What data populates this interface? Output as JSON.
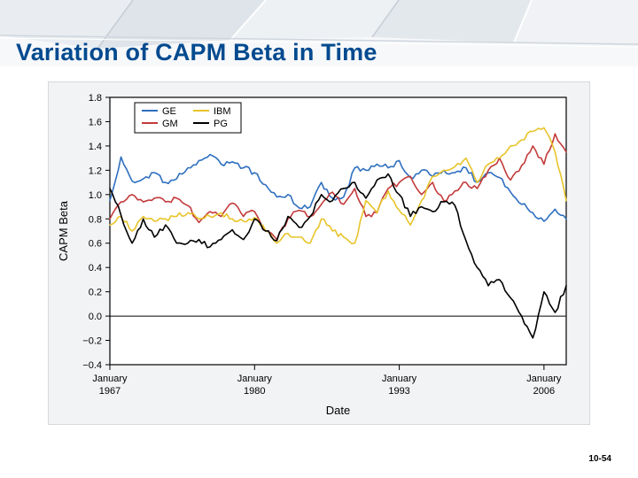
{
  "slide": {
    "title_text": "Variation of CAPM Beta in Time",
    "title_color": "#004a8f",
    "page_number": "10-54",
    "background": "#ffffff",
    "banner": {
      "base_fill": "#f3f5f7",
      "shadow": "#c3cad1",
      "highlight": "#ffffff",
      "mid": "#dbe1e7"
    }
  },
  "chart": {
    "type": "line",
    "frame_border": "#bfbfbf",
    "frame_bg": "#f2f3f5",
    "plot_bg": "#ffffff",
    "axis_color": "#000000",
    "grid_color": "#000000",
    "zero_line_color": "#000000",
    "line_width": 1.6,
    "tick_fontsize": 11,
    "label_fontsize": 13,
    "legend": {
      "border": "#000000",
      "bg": "#ffffff",
      "fontsize": 11,
      "items": [
        {
          "label": "GE",
          "color": "#2e6fbf"
        },
        {
          "label": "GM",
          "color": "#c33a3a"
        },
        {
          "label": "IBM",
          "color": "#e8c42a"
        },
        {
          "label": "PG",
          "color": "#000000"
        }
      ]
    },
    "y": {
      "label": "CAPM Beta",
      "min": -0.4,
      "max": 1.8,
      "ticks": [
        -0.4,
        -0.2,
        0.0,
        0.2,
        0.4,
        0.6,
        0.8,
        1.0,
        1.2,
        1.4,
        1.6,
        1.8
      ]
    },
    "x": {
      "label": "Date",
      "min": 1967,
      "max": 2008,
      "tick_years": [
        1967,
        1980,
        1993,
        2006
      ],
      "tick_label_top": "January"
    },
    "series": {
      "GE": {
        "color": "#2e6fbf",
        "points": [
          [
            1967,
            0.95
          ],
          [
            1968,
            1.31
          ],
          [
            1969,
            1.11
          ],
          [
            1970,
            1.13
          ],
          [
            1971,
            1.18
          ],
          [
            1972,
            1.1
          ],
          [
            1973,
            1.13
          ],
          [
            1974,
            1.22
          ],
          [
            1975,
            1.28
          ],
          [
            1976,
            1.33
          ],
          [
            1977,
            1.25
          ],
          [
            1978,
            1.27
          ],
          [
            1979,
            1.22
          ],
          [
            1980,
            1.18
          ],
          [
            1981,
            1.08
          ],
          [
            1982,
            0.98
          ],
          [
            1983,
            1.0
          ],
          [
            1984,
            0.89
          ],
          [
            1985,
            0.9
          ],
          [
            1986,
            1.1
          ],
          [
            1987,
            0.97
          ],
          [
            1988,
            0.98
          ],
          [
            1989,
            1.22
          ],
          [
            1990,
            1.2
          ],
          [
            1991,
            1.25
          ],
          [
            1992,
            1.22
          ],
          [
            1993,
            1.28
          ],
          [
            1994,
            1.14
          ],
          [
            1995,
            1.2
          ],
          [
            1996,
            1.15
          ],
          [
            1997,
            1.2
          ],
          [
            1998,
            1.18
          ],
          [
            1999,
            1.22
          ],
          [
            2000,
            1.1
          ],
          [
            2001,
            1.18
          ],
          [
            2002,
            1.14
          ],
          [
            2003,
            1.02
          ],
          [
            2004,
            0.92
          ],
          [
            2005,
            0.85
          ],
          [
            2006,
            0.78
          ],
          [
            2007,
            0.88
          ],
          [
            2008,
            0.8
          ]
        ]
      },
      "GM": {
        "color": "#c33a3a",
        "points": [
          [
            1967,
            0.8
          ],
          [
            1968,
            0.94
          ],
          [
            1969,
            1.0
          ],
          [
            1970,
            0.94
          ],
          [
            1971,
            0.97
          ],
          [
            1972,
            0.94
          ],
          [
            1973,
            0.97
          ],
          [
            1974,
            0.91
          ],
          [
            1975,
            0.77
          ],
          [
            1976,
            0.86
          ],
          [
            1977,
            0.82
          ],
          [
            1978,
            0.93
          ],
          [
            1979,
            0.82
          ],
          [
            1980,
            0.86
          ],
          [
            1981,
            0.7
          ],
          [
            1982,
            0.63
          ],
          [
            1983,
            0.8
          ],
          [
            1984,
            0.87
          ],
          [
            1985,
            0.82
          ],
          [
            1986,
            0.92
          ],
          [
            1987,
            1.02
          ],
          [
            1988,
            0.92
          ],
          [
            1989,
            1.05
          ],
          [
            1990,
            0.82
          ],
          [
            1991,
            0.85
          ],
          [
            1992,
            1.05
          ],
          [
            1993,
            1.1
          ],
          [
            1994,
            1.15
          ],
          [
            1995,
            1.0
          ],
          [
            1996,
            1.1
          ],
          [
            1997,
            0.95
          ],
          [
            1998,
            1.03
          ],
          [
            1999,
            1.1
          ],
          [
            2000,
            1.05
          ],
          [
            2001,
            1.2
          ],
          [
            2002,
            1.3
          ],
          [
            2003,
            1.12
          ],
          [
            2004,
            1.24
          ],
          [
            2005,
            1.4
          ],
          [
            2006,
            1.25
          ],
          [
            2007,
            1.5
          ],
          [
            2008,
            1.35
          ]
        ]
      },
      "IBM": {
        "color": "#e8c42a",
        "points": [
          [
            1967,
            0.75
          ],
          [
            1968,
            0.82
          ],
          [
            1969,
            0.7
          ],
          [
            1970,
            0.82
          ],
          [
            1971,
            0.78
          ],
          [
            1972,
            0.8
          ],
          [
            1973,
            0.82
          ],
          [
            1974,
            0.85
          ],
          [
            1975,
            0.8
          ],
          [
            1976,
            0.82
          ],
          [
            1977,
            0.85
          ],
          [
            1978,
            0.8
          ],
          [
            1979,
            0.78
          ],
          [
            1980,
            0.81
          ],
          [
            1981,
            0.7
          ],
          [
            1982,
            0.6
          ],
          [
            1983,
            0.68
          ],
          [
            1984,
            0.65
          ],
          [
            1985,
            0.6
          ],
          [
            1986,
            0.8
          ],
          [
            1987,
            0.7
          ],
          [
            1988,
            0.65
          ],
          [
            1989,
            0.6
          ],
          [
            1990,
            0.95
          ],
          [
            1991,
            0.85
          ],
          [
            1992,
            1.03
          ],
          [
            1993,
            0.87
          ],
          [
            1994,
            0.75
          ],
          [
            1995,
            0.95
          ],
          [
            1996,
            1.15
          ],
          [
            1997,
            1.2
          ],
          [
            1998,
            1.23
          ],
          [
            1999,
            1.3
          ],
          [
            2000,
            1.1
          ],
          [
            2001,
            1.25
          ],
          [
            2002,
            1.3
          ],
          [
            2003,
            1.4
          ],
          [
            2004,
            1.45
          ],
          [
            2005,
            1.52
          ],
          [
            2006,
            1.55
          ],
          [
            2007,
            1.35
          ],
          [
            2008,
            0.95
          ]
        ]
      },
      "PG": {
        "color": "#000000",
        "points": [
          [
            1967,
            1.05
          ],
          [
            1968,
            0.83
          ],
          [
            1969,
            0.6
          ],
          [
            1970,
            0.8
          ],
          [
            1971,
            0.65
          ],
          [
            1972,
            0.75
          ],
          [
            1973,
            0.6
          ],
          [
            1974,
            0.6
          ],
          [
            1975,
            0.63
          ],
          [
            1976,
            0.57
          ],
          [
            1977,
            0.63
          ],
          [
            1978,
            0.71
          ],
          [
            1979,
            0.63
          ],
          [
            1980,
            0.8
          ],
          [
            1981,
            0.7
          ],
          [
            1982,
            0.62
          ],
          [
            1983,
            0.82
          ],
          [
            1984,
            0.73
          ],
          [
            1985,
            0.82
          ],
          [
            1986,
            1.0
          ],
          [
            1987,
            0.95
          ],
          [
            1988,
            1.05
          ],
          [
            1989,
            1.1
          ],
          [
            1990,
            0.97
          ],
          [
            1991,
            1.12
          ],
          [
            1992,
            1.17
          ],
          [
            1993,
            1.0
          ],
          [
            1994,
            0.82
          ],
          [
            1995,
            0.9
          ],
          [
            1996,
            0.86
          ],
          [
            1997,
            0.94
          ],
          [
            1998,
            0.91
          ],
          [
            1999,
            0.62
          ],
          [
            2000,
            0.4
          ],
          [
            2001,
            0.25
          ],
          [
            2002,
            0.3
          ],
          [
            2003,
            0.15
          ],
          [
            2004,
            0.0
          ],
          [
            2005,
            -0.18
          ],
          [
            2006,
            0.2
          ],
          [
            2007,
            0.03
          ],
          [
            2008,
            0.25
          ]
        ]
      }
    }
  }
}
